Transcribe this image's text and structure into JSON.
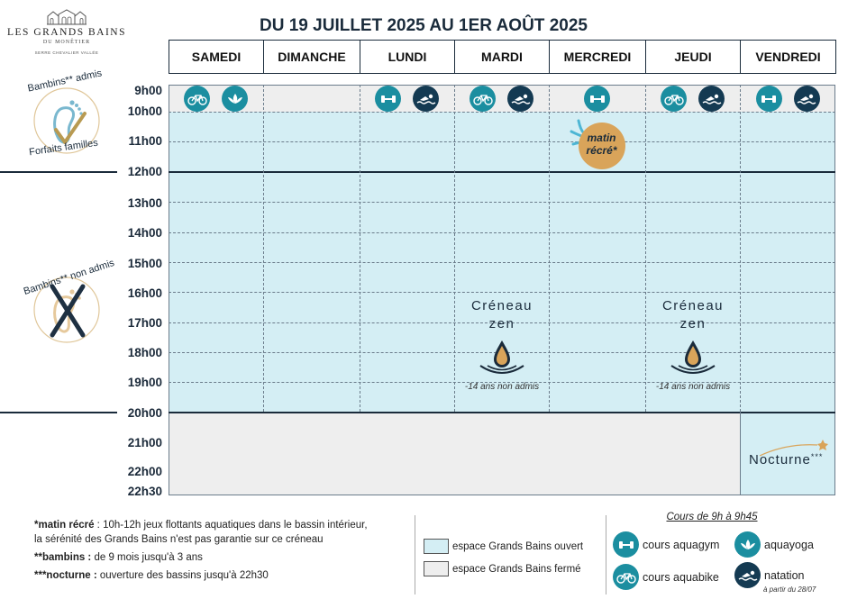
{
  "logo": {
    "name": "LES GRANDS BAINS",
    "sub": "DU MONÊTIER",
    "tiny": "SERRE CHEVALIER VALLÉE"
  },
  "title": "DU 19 JUILLET 2025 AU 1ER AOÛT 2025",
  "days": [
    "SAMEDI",
    "DIMANCHE",
    "LUNDI",
    "MARDI",
    "MERCREDI",
    "JEUDI",
    "VENDREDI"
  ],
  "times": [
    "9h00",
    "10h00",
    "11h00",
    "12h00",
    "13h00",
    "14h00",
    "15h00",
    "16h00",
    "17h00",
    "18h00",
    "19h00",
    "20h00",
    "21h00",
    "22h00",
    "22h30"
  ],
  "badges": {
    "admis_top": "Bambins** admis",
    "admis_bottom": "Forfaits familles",
    "non_admis": "Bambins** non admis"
  },
  "matin_recre": {
    "line1": "matin",
    "line2": "récré*"
  },
  "zen": {
    "title_line1": "Créneau",
    "title_line2": "zen",
    "note": "-14 ans non admis"
  },
  "nocturne": {
    "label": "Nocturne",
    "mark": "***"
  },
  "footnotes": {
    "matin_key": "*matin récré",
    "matin_text": " : 10h-12h jeux flottants aquatiques dans le bassin intérieur,",
    "matin_text2": "la sérénité des Grands Bains n'est pas garantie sur ce créneau",
    "bambins_key": "**bambins :",
    "bambins_text": " de 9 mois jusqu'à 3 ans",
    "nocturne_key": "***nocturne :",
    "nocturne_text": " ouverture des bassins jusqu'à 22h30"
  },
  "legend": {
    "open": "espace Grands Bains ouvert",
    "closed": "espace Grands Bains fermé"
  },
  "courses": {
    "title": "Cours de 9h à 9h45",
    "aquagym": "cours aquagym",
    "aquayoga": "aquayoga",
    "aquabike": "cours aquabike",
    "natation": "natation",
    "natation_note": "à partir du 28/07"
  },
  "colors": {
    "open": "#d4eef4",
    "closed": "#eeeeee",
    "teal": "#1b8ea0",
    "navy": "#1a2b3b",
    "gold": "#d9a45a"
  },
  "morning_activities": [
    [
      "bike-icon",
      "lotus-icon"
    ],
    [],
    [
      "dumbbell-icon",
      "swimmer-icon"
    ],
    [
      "bike-icon",
      "swimmer-icon"
    ],
    [
      "dumbbell-icon"
    ],
    [
      "bike-icon",
      "swimmer-icon"
    ],
    [
      "dumbbell-icon",
      "swimmer-icon"
    ]
  ]
}
